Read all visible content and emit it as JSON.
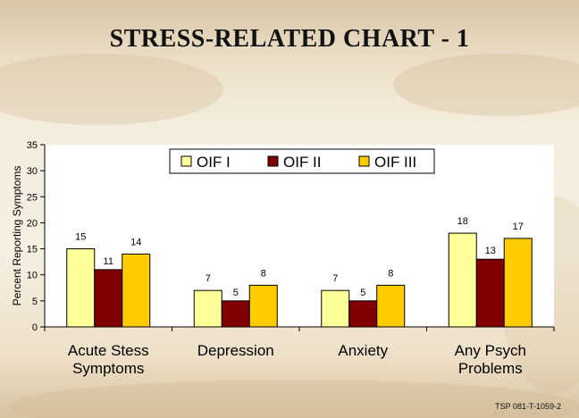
{
  "slide": {
    "title": "STRESS-RELATED CHART - 1",
    "footer": "TSP 081-T-1059-2"
  },
  "chart_data": {
    "type": "bar",
    "title": "",
    "xlabel": "",
    "ylabel": "Percent Reporting Symptoms",
    "ylim": [
      0,
      35
    ],
    "yticks": [
      0,
      5,
      10,
      15,
      20,
      25,
      30,
      35
    ],
    "grid": false,
    "legend_position": "top-center",
    "categories": [
      [
        "Acute Stess",
        "Symptoms"
      ],
      [
        "Depression"
      ],
      [
        "Anxiety"
      ],
      [
        "Any Psych",
        "Problems"
      ]
    ],
    "series": [
      {
        "name": "OIF I",
        "color": "#ffff99",
        "values": [
          15,
          7,
          7,
          18
        ]
      },
      {
        "name": "OIF II",
        "color": "#800000",
        "values": [
          11,
          5,
          5,
          13
        ]
      },
      {
        "name": "OIF III",
        "color": "#ffcc00",
        "values": [
          14,
          8,
          8,
          17
        ]
      }
    ]
  }
}
